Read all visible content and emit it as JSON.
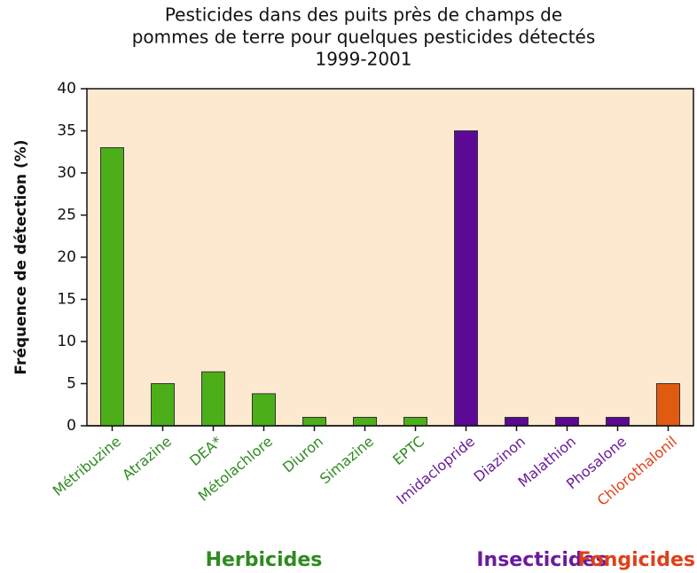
{
  "chart_data": {
    "type": "bar",
    "title": [
      "Pesticides dans des puits près de champs de",
      "pommes de terre pour quelques pesticides détectés",
      "1999-2001"
    ],
    "y_label": "Fréquence de détection (%)",
    "categories": [
      "Métribuzine",
      "Atrazine",
      "DEA*",
      "Métolachlore",
      "Diuron",
      "Simazine",
      "EPTC",
      "Imidaclopride",
      "Diazinon",
      "Malathion",
      "Phosalone",
      "Chlorothalonil"
    ],
    "values": [
      33,
      5,
      6.4,
      3.8,
      1,
      1,
      1,
      35,
      1,
      1,
      1,
      5
    ],
    "colors": [
      "#4caf1a",
      "#4caf1a",
      "#4caf1a",
      "#4caf1a",
      "#4caf1a",
      "#4caf1a",
      "#4caf1a",
      "#5c0a96",
      "#5c0a96",
      "#5c0a96",
      "#5c0a96",
      "#e05a10"
    ],
    "label_colors": [
      "#2e8b20",
      "#2e8b20",
      "#2e8b20",
      "#2e8b20",
      "#2e8b20",
      "#2e8b20",
      "#2e8b20",
      "#6a1b9a",
      "#6a1b9a",
      "#6a1b9a",
      "#6a1b9a",
      "#e0401a"
    ],
    "groups": [
      {
        "name": "Herbicides",
        "color": "#2e8b20"
      },
      {
        "name": "Insecticides",
        "color": "#6a1b9a"
      },
      {
        "name": "Fongicides",
        "color": "#e0401a"
      }
    ],
    "ylim": [
      0,
      40
    ],
    "yticks": [
      0,
      5,
      10,
      15,
      20,
      25,
      30,
      35,
      40
    ],
    "background": "#fde9cf"
  }
}
